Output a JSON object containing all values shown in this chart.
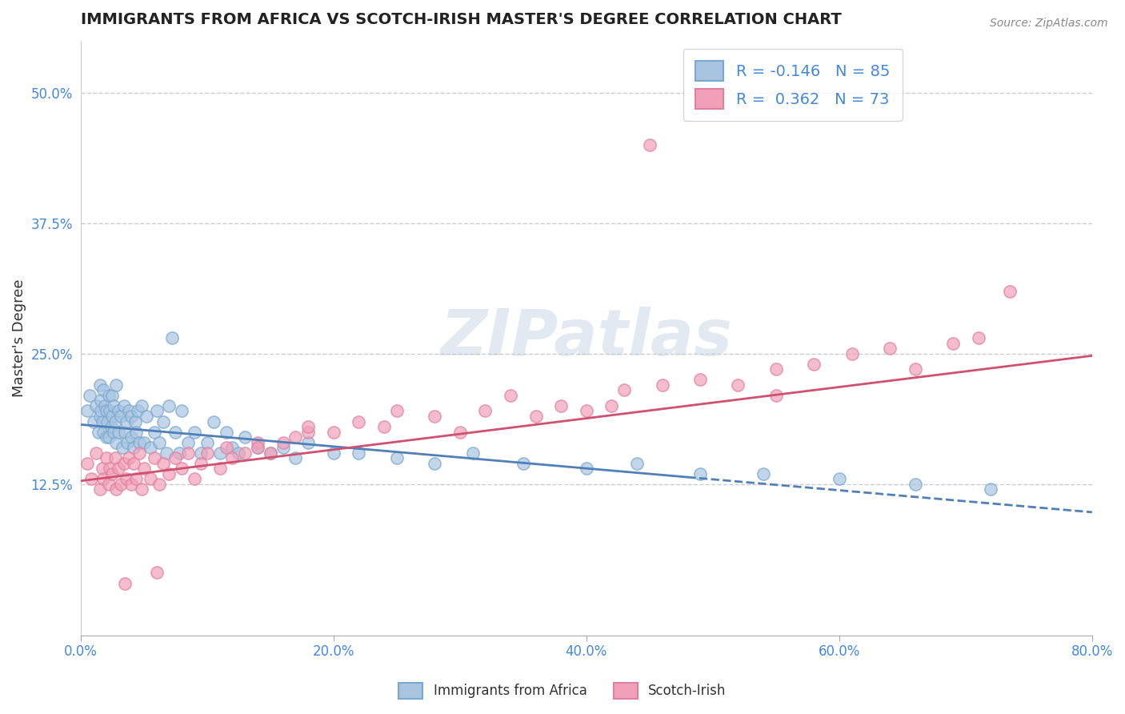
{
  "title": "IMMIGRANTS FROM AFRICA VS SCOTCH-IRISH MASTER'S DEGREE CORRELATION CHART",
  "source_text": "Source: ZipAtlas.com",
  "ylabel": "Master's Degree",
  "xlim": [
    0.0,
    0.8
  ],
  "ylim": [
    -0.02,
    0.55
  ],
  "xtick_labels": [
    "0.0%",
    "20.0%",
    "40.0%",
    "60.0%",
    "80.0%"
  ],
  "xtick_vals": [
    0.0,
    0.2,
    0.4,
    0.6,
    0.8
  ],
  "ytick_labels": [
    "12.5%",
    "25.0%",
    "37.5%",
    "50.0%"
  ],
  "ytick_vals": [
    0.125,
    0.25,
    0.375,
    0.5
  ],
  "watermark": "ZIPatlas",
  "blue_color": "#a8c4e0",
  "pink_color": "#f0a0b8",
  "blue_edge_color": "#7aa8d0",
  "pink_edge_color": "#e080a0",
  "blue_line_color": "#5080b8",
  "pink_line_color": "#d05070",
  "legend_text_color": "#4488dd",
  "R_blue": -0.146,
  "N_blue": 85,
  "R_pink": 0.362,
  "N_pink": 73,
  "blue_line_start_y": 0.182,
  "blue_line_end_y": 0.098,
  "pink_line_start_y": 0.128,
  "pink_line_end_y": 0.248,
  "blue_scatter_x": [
    0.005,
    0.007,
    0.01,
    0.012,
    0.014,
    0.015,
    0.015,
    0.016,
    0.016,
    0.017,
    0.018,
    0.018,
    0.019,
    0.02,
    0.02,
    0.021,
    0.022,
    0.022,
    0.023,
    0.024,
    0.025,
    0.025,
    0.026,
    0.026,
    0.027,
    0.028,
    0.028,
    0.03,
    0.03,
    0.032,
    0.033,
    0.034,
    0.035,
    0.036,
    0.037,
    0.038,
    0.04,
    0.04,
    0.042,
    0.043,
    0.044,
    0.045,
    0.046,
    0.048,
    0.05,
    0.052,
    0.055,
    0.058,
    0.06,
    0.062,
    0.065,
    0.068,
    0.07,
    0.072,
    0.075,
    0.078,
    0.08,
    0.085,
    0.09,
    0.095,
    0.1,
    0.105,
    0.11,
    0.115,
    0.12,
    0.125,
    0.13,
    0.14,
    0.15,
    0.16,
    0.17,
    0.18,
    0.2,
    0.22,
    0.25,
    0.28,
    0.31,
    0.35,
    0.4,
    0.44,
    0.49,
    0.54,
    0.6,
    0.66,
    0.72
  ],
  "blue_scatter_y": [
    0.195,
    0.21,
    0.185,
    0.2,
    0.175,
    0.22,
    0.19,
    0.195,
    0.205,
    0.185,
    0.215,
    0.175,
    0.2,
    0.17,
    0.195,
    0.185,
    0.21,
    0.17,
    0.195,
    0.18,
    0.19,
    0.21,
    0.175,
    0.2,
    0.185,
    0.22,
    0.165,
    0.195,
    0.175,
    0.19,
    0.16,
    0.2,
    0.175,
    0.185,
    0.165,
    0.195,
    0.17,
    0.19,
    0.16,
    0.185,
    0.175,
    0.195,
    0.165,
    0.2,
    0.165,
    0.19,
    0.16,
    0.175,
    0.195,
    0.165,
    0.185,
    0.155,
    0.2,
    0.265,
    0.175,
    0.155,
    0.195,
    0.165,
    0.175,
    0.155,
    0.165,
    0.185,
    0.155,
    0.175,
    0.16,
    0.155,
    0.17,
    0.16,
    0.155,
    0.16,
    0.15,
    0.165,
    0.155,
    0.155,
    0.15,
    0.145,
    0.155,
    0.145,
    0.14,
    0.145,
    0.135,
    0.135,
    0.13,
    0.125,
    0.12
  ],
  "pink_scatter_x": [
    0.005,
    0.008,
    0.012,
    0.015,
    0.017,
    0.018,
    0.02,
    0.022,
    0.023,
    0.025,
    0.027,
    0.028,
    0.03,
    0.032,
    0.034,
    0.036,
    0.038,
    0.04,
    0.042,
    0.044,
    0.046,
    0.048,
    0.05,
    0.055,
    0.058,
    0.062,
    0.065,
    0.07,
    0.075,
    0.08,
    0.085,
    0.09,
    0.095,
    0.1,
    0.11,
    0.115,
    0.12,
    0.13,
    0.14,
    0.15,
    0.16,
    0.17,
    0.18,
    0.2,
    0.22,
    0.24,
    0.28,
    0.32,
    0.36,
    0.38,
    0.4,
    0.43,
    0.46,
    0.49,
    0.52,
    0.55,
    0.58,
    0.61,
    0.64,
    0.66,
    0.69,
    0.71,
    0.735,
    0.34,
    0.25,
    0.3,
    0.42,
    0.55,
    0.18,
    0.14,
    0.06,
    0.035,
    0.45
  ],
  "pink_scatter_y": [
    0.145,
    0.13,
    0.155,
    0.12,
    0.14,
    0.13,
    0.15,
    0.125,
    0.14,
    0.135,
    0.15,
    0.12,
    0.14,
    0.125,
    0.145,
    0.13,
    0.15,
    0.125,
    0.145,
    0.13,
    0.155,
    0.12,
    0.14,
    0.13,
    0.15,
    0.125,
    0.145,
    0.135,
    0.15,
    0.14,
    0.155,
    0.13,
    0.145,
    0.155,
    0.14,
    0.16,
    0.15,
    0.155,
    0.165,
    0.155,
    0.165,
    0.17,
    0.175,
    0.175,
    0.185,
    0.18,
    0.19,
    0.195,
    0.19,
    0.2,
    0.195,
    0.215,
    0.22,
    0.225,
    0.22,
    0.235,
    0.24,
    0.25,
    0.255,
    0.235,
    0.26,
    0.265,
    0.31,
    0.21,
    0.195,
    0.175,
    0.2,
    0.21,
    0.18,
    0.16,
    0.04,
    0.03,
    0.45
  ]
}
